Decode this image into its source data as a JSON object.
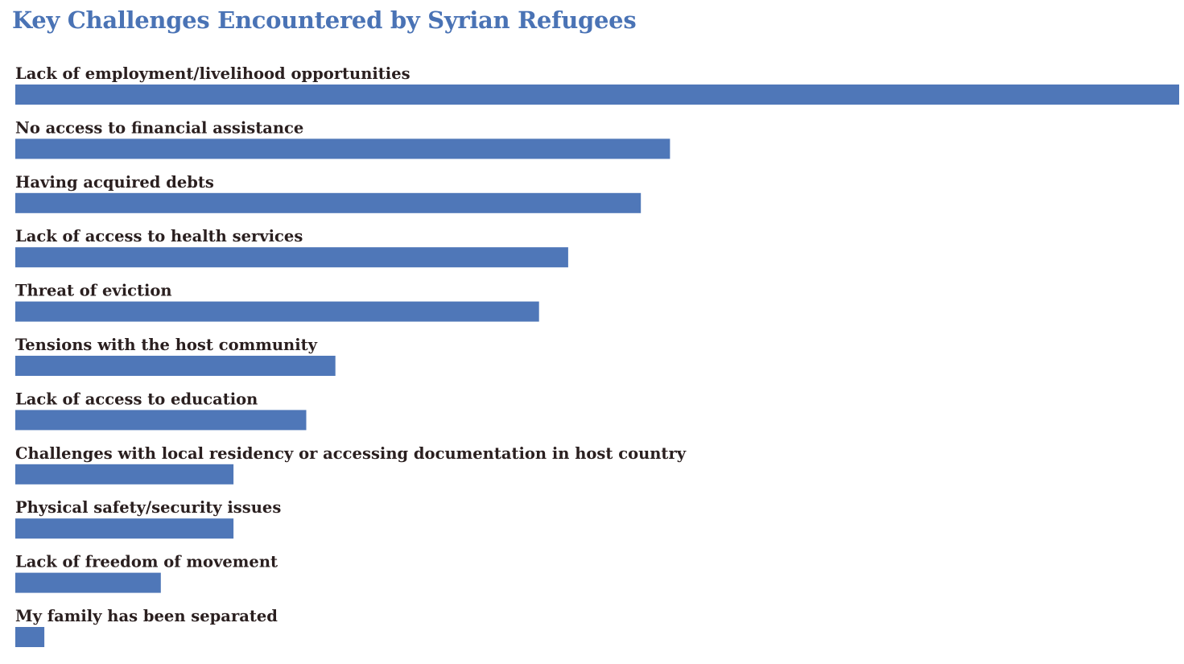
{
  "chart_data": {
    "type": "bar",
    "orientation": "horizontal",
    "title": "Key Challenges Encountered by Syrian Refugees",
    "xlabel": "",
    "ylabel": "",
    "grid": false,
    "legend": "none",
    "bar_color": "#4f77b8",
    "label_color": "#2a1f1f",
    "title_color": "#4a73b5",
    "xlim": [
      0,
      80
    ],
    "categories": [
      "Lack of employment/livelihood opportunities",
      "No access to financial assistance",
      "Having acquired debts",
      "Lack of access to health services",
      "Threat of eviction",
      "Tensions with the host community",
      "Lack of access to education",
      "Challenges with local residency or accessing documentation in host country",
      "Physical safety/security issues",
      "Lack of freedom of movement",
      "My family has been separated"
    ],
    "values": [
      80,
      45,
      43,
      38,
      36,
      22,
      20,
      15,
      15,
      10,
      2
    ]
  }
}
